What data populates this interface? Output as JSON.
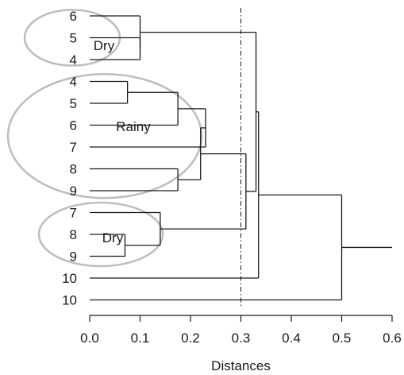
{
  "chart_data": {
    "type": "dendrogram",
    "orientation": "horizontal",
    "xlabel": "Distances",
    "xlim": [
      0.0,
      0.6
    ],
    "xticks": [
      0.0,
      0.1,
      0.2,
      0.3,
      0.4,
      0.5,
      0.6
    ],
    "xtick_labels": [
      "0.0",
      "0.1",
      "0.2",
      "0.3",
      "0.4",
      "0.5",
      "0.6"
    ],
    "cutoff": 0.3,
    "leaf_end": 0.0,
    "leaves": [
      "6",
      "5",
      "4",
      "4",
      "5",
      "6",
      "7",
      "8",
      "9",
      "7",
      "8",
      "9",
      "10",
      "10"
    ],
    "merges": [
      {
        "id": "m1",
        "a": 1,
        "b": 2,
        "height": 0.1
      },
      {
        "id": "m2",
        "a": 0,
        "b": "m1",
        "height": 0.1
      },
      {
        "id": "m3",
        "a": 3,
        "b": 4,
        "height": 0.075
      },
      {
        "id": "m4",
        "a": "m3",
        "b": 5,
        "height": 0.175
      },
      {
        "id": "m5",
        "a": 7,
        "b": 8,
        "height": 0.175
      },
      {
        "id": "m6",
        "a": "m4",
        "b": 6,
        "height": 0.23
      },
      {
        "id": "m7",
        "a": "m6",
        "b": "m5",
        "height": 0.22
      },
      {
        "id": "m8",
        "a": 10,
        "b": 11,
        "height": 0.07
      },
      {
        "id": "m9",
        "a": 9,
        "b": "m8",
        "height": 0.14
      },
      {
        "id": "m10",
        "a": "m7",
        "b": "m9",
        "height": 0.31
      },
      {
        "id": "m11",
        "a": "m2",
        "b": "m10",
        "height": 0.33
      },
      {
        "id": "m12",
        "a": "m11",
        "b": 12,
        "height": 0.335
      },
      {
        "id": "m13",
        "a": "m12",
        "b": 13,
        "height": 0.5
      }
    ],
    "root_extend_to": 0.6,
    "groups": [
      {
        "label": "Dry",
        "leaves": [
          0,
          2
        ],
        "shape": "ellipse"
      },
      {
        "label": "Rainy",
        "leaves": [
          3,
          8
        ],
        "shape": "ellipse"
      },
      {
        "label": "Dry",
        "leaves": [
          9,
          11
        ],
        "shape": "ellipse"
      }
    ],
    "colors": {
      "lines": "#1a1a1a",
      "ellipses": "#bdbdbd"
    },
    "grid": false
  }
}
